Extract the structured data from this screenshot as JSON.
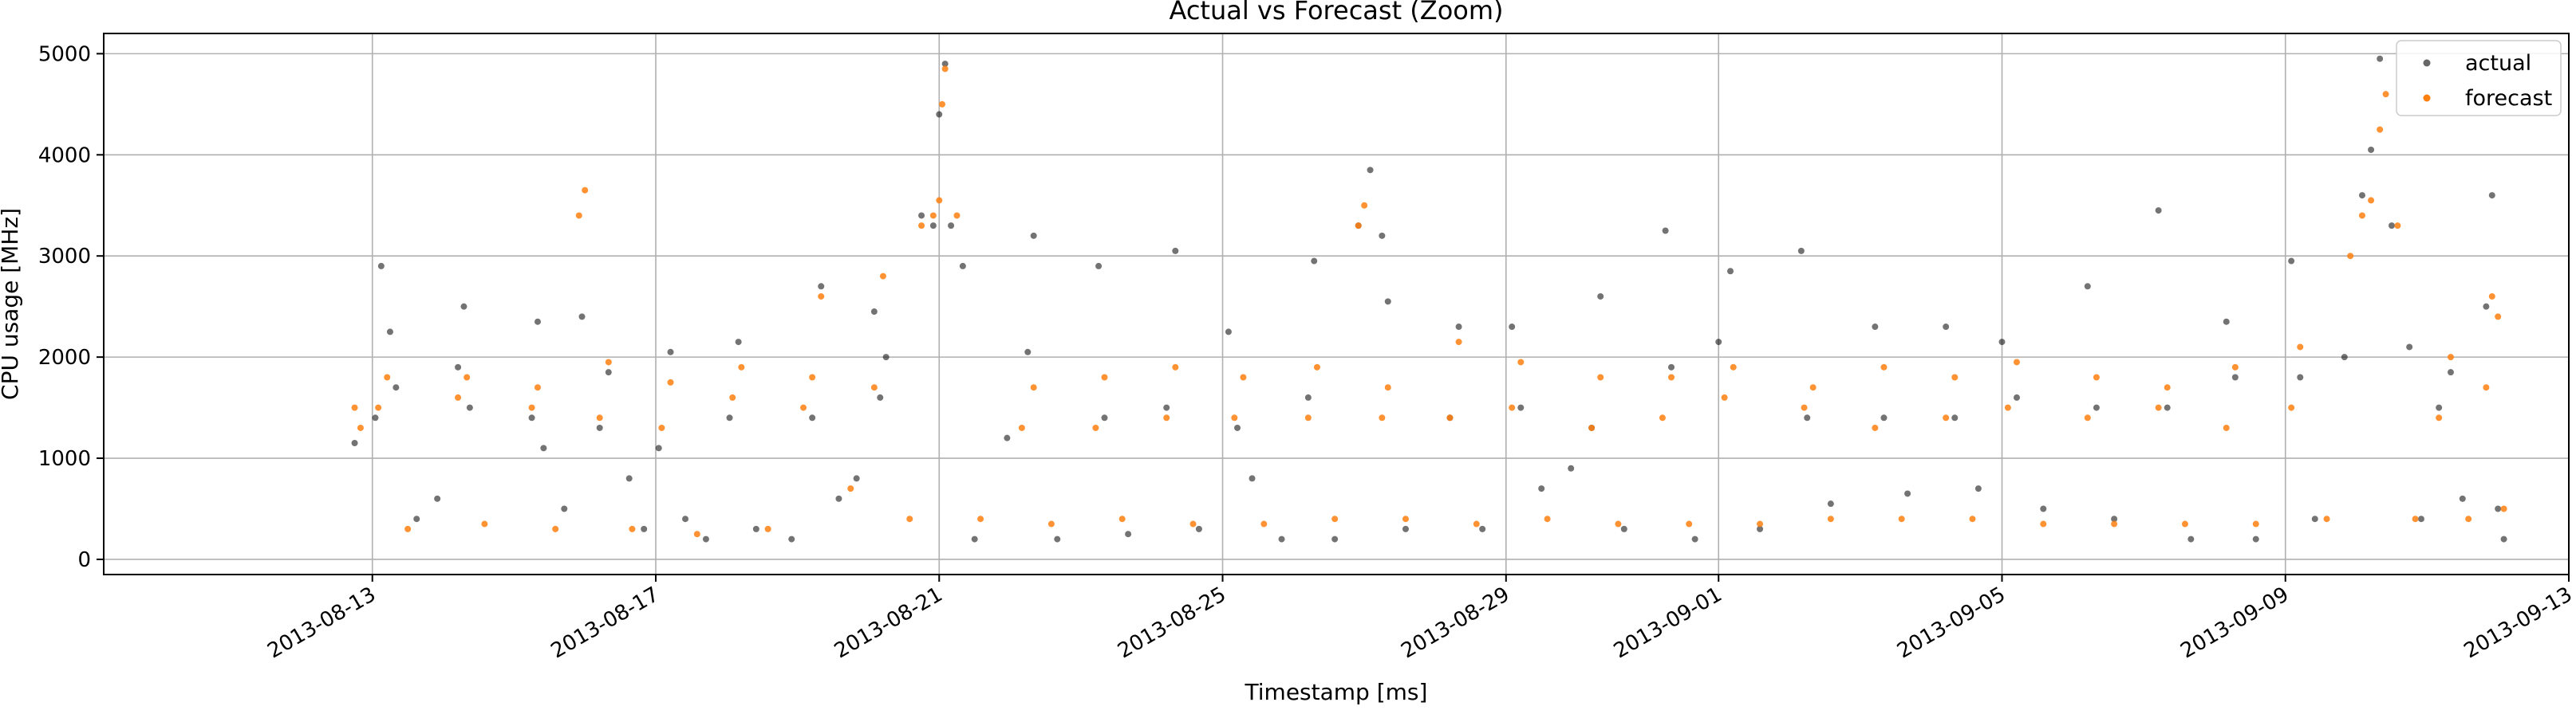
{
  "chart_data": {
    "type": "scatter",
    "title": "Actual vs Forecast (Zoom)",
    "xlabel": "Timestamp [ms]",
    "ylabel": "CPU usage [MHz]",
    "x_range": [
      "2013-08-09T05:00",
      "2013-09-13T00:00"
    ],
    "ylim": [
      -150,
      5200
    ],
    "y_ticks": [
      0,
      1000,
      2000,
      3000,
      4000,
      5000
    ],
    "x_ticks": [
      "2013-08-13",
      "2013-08-17",
      "2013-08-21",
      "2013-08-25",
      "2013-08-29",
      "2013-09-01",
      "2013-09-05",
      "2013-09-09",
      "2013-09-13"
    ],
    "grid": true,
    "legend_position": "top-right",
    "colors": {
      "actual": "#000000",
      "forecast": "#ff7f0e",
      "axes": "#000000",
      "grid": "#b0b0b0"
    },
    "series": [
      {
        "name": "actual",
        "color": "#000000",
        "points": [
          [
            "2013-08-12T18:00",
            1150
          ],
          [
            "2013-08-13T01:00",
            1400
          ],
          [
            "2013-08-13T03:00",
            2900
          ],
          [
            "2013-08-13T06:00",
            2250
          ],
          [
            "2013-08-13T08:00",
            1700
          ],
          [
            "2013-08-13T15:00",
            400
          ],
          [
            "2013-08-13T22:00",
            600
          ],
          [
            "2013-08-14T05:00",
            1900
          ],
          [
            "2013-08-14T07:00",
            2500
          ],
          [
            "2013-08-14T09:00",
            1500
          ],
          [
            "2013-08-15T06:00",
            1400
          ],
          [
            "2013-08-15T08:00",
            2350
          ],
          [
            "2013-08-15T10:00",
            1100
          ],
          [
            "2013-08-15T17:00",
            500
          ],
          [
            "2013-08-15T23:00",
            2400
          ],
          [
            "2013-08-16T05:00",
            1300
          ],
          [
            "2013-08-16T08:00",
            1850
          ],
          [
            "2013-08-16T15:00",
            800
          ],
          [
            "2013-08-16T20:00",
            300
          ],
          [
            "2013-08-17T01:00",
            1100
          ],
          [
            "2013-08-17T05:00",
            2050
          ],
          [
            "2013-08-17T10:00",
            400
          ],
          [
            "2013-08-17T17:00",
            200
          ],
          [
            "2013-08-18T01:00",
            1400
          ],
          [
            "2013-08-18T04:00",
            2150
          ],
          [
            "2013-08-18T10:00",
            300
          ],
          [
            "2013-08-18T22:00",
            200
          ],
          [
            "2013-08-19T05:00",
            1400
          ],
          [
            "2013-08-19T08:00",
            2700
          ],
          [
            "2013-08-19T14:00",
            600
          ],
          [
            "2013-08-19T20:00",
            800
          ],
          [
            "2013-08-20T02:00",
            2450
          ],
          [
            "2013-08-20T04:00",
            1600
          ],
          [
            "2013-08-20T06:00",
            2000
          ],
          [
            "2013-08-20T18:00",
            3400
          ],
          [
            "2013-08-20T22:00",
            3300
          ],
          [
            "2013-08-21T00:00",
            4400
          ],
          [
            "2013-08-21T02:00",
            4900
          ],
          [
            "2013-08-21T04:00",
            3300
          ],
          [
            "2013-08-21T08:00",
            2900
          ],
          [
            "2013-08-21T12:00",
            200
          ],
          [
            "2013-08-21T23:00",
            1200
          ],
          [
            "2013-08-22T06:00",
            2050
          ],
          [
            "2013-08-22T08:00",
            3200
          ],
          [
            "2013-08-22T16:00",
            200
          ],
          [
            "2013-08-23T06:00",
            2900
          ],
          [
            "2013-08-23T08:00",
            1400
          ],
          [
            "2013-08-23T16:00",
            250
          ],
          [
            "2013-08-24T05:00",
            1500
          ],
          [
            "2013-08-24T08:00",
            3050
          ],
          [
            "2013-08-24T16:00",
            300
          ],
          [
            "2013-08-25T02:00",
            2250
          ],
          [
            "2013-08-25T05:00",
            1300
          ],
          [
            "2013-08-25T10:00",
            800
          ],
          [
            "2013-08-25T20:00",
            200
          ],
          [
            "2013-08-26T05:00",
            1600
          ],
          [
            "2013-08-26T07:00",
            2950
          ],
          [
            "2013-08-26T14:00",
            200
          ],
          [
            "2013-08-26T22:00",
            3300
          ],
          [
            "2013-08-27T02:00",
            3850
          ],
          [
            "2013-08-27T06:00",
            3200
          ],
          [
            "2013-08-27T08:00",
            2550
          ],
          [
            "2013-08-27T14:00",
            300
          ],
          [
            "2013-08-28T05:00",
            1400
          ],
          [
            "2013-08-28T08:00",
            2300
          ],
          [
            "2013-08-28T16:00",
            300
          ],
          [
            "2013-08-29T02:00",
            2300
          ],
          [
            "2013-08-29T05:00",
            1500
          ],
          [
            "2013-08-29T12:00",
            700
          ],
          [
            "2013-08-29T22:00",
            900
          ],
          [
            "2013-08-30T05:00",
            1300
          ],
          [
            "2013-08-30T08:00",
            2600
          ],
          [
            "2013-08-30T16:00",
            300
          ],
          [
            "2013-08-31T06:00",
            3250
          ],
          [
            "2013-08-31T08:00",
            1900
          ],
          [
            "2013-08-31T16:00",
            200
          ],
          [
            "2013-09-01T00:00",
            2150
          ],
          [
            "2013-09-01T04:00",
            2850
          ],
          [
            "2013-09-01T14:00",
            300
          ],
          [
            "2013-09-02T04:00",
            3050
          ],
          [
            "2013-09-02T06:00",
            1400
          ],
          [
            "2013-09-02T14:00",
            550
          ],
          [
            "2013-09-03T05:00",
            2300
          ],
          [
            "2013-09-03T08:00",
            1400
          ],
          [
            "2013-09-03T16:00",
            650
          ],
          [
            "2013-09-04T05:00",
            2300
          ],
          [
            "2013-09-04T08:00",
            1400
          ],
          [
            "2013-09-04T16:00",
            700
          ],
          [
            "2013-09-05T00:00",
            2150
          ],
          [
            "2013-09-05T05:00",
            1600
          ],
          [
            "2013-09-05T14:00",
            500
          ],
          [
            "2013-09-06T05:00",
            2700
          ],
          [
            "2013-09-06T08:00",
            1500
          ],
          [
            "2013-09-06T14:00",
            400
          ],
          [
            "2013-09-07T05:00",
            3450
          ],
          [
            "2013-09-07T08:00",
            1500
          ],
          [
            "2013-09-07T16:00",
            200
          ],
          [
            "2013-09-08T04:00",
            2350
          ],
          [
            "2013-09-08T07:00",
            1800
          ],
          [
            "2013-09-08T14:00",
            200
          ],
          [
            "2013-09-09T02:00",
            2950
          ],
          [
            "2013-09-09T05:00",
            1800
          ],
          [
            "2013-09-09T10:00",
            400
          ],
          [
            "2013-09-09T20:00",
            2000
          ],
          [
            "2013-09-10T02:00",
            3600
          ],
          [
            "2013-09-10T05:00",
            4050
          ],
          [
            "2013-09-10T08:00",
            4950
          ],
          [
            "2013-09-10T12:00",
            3300
          ],
          [
            "2013-09-10T18:00",
            2100
          ],
          [
            "2013-09-10T22:00",
            400
          ],
          [
            "2013-09-11T04:00",
            1500
          ],
          [
            "2013-09-11T08:00",
            1850
          ],
          [
            "2013-09-11T12:00",
            600
          ],
          [
            "2013-09-11T20:00",
            2500
          ],
          [
            "2013-09-11T22:00",
            3600
          ],
          [
            "2013-09-12T00:00",
            500
          ],
          [
            "2013-09-12T02:00",
            200
          ]
        ]
      },
      {
        "name": "forecast",
        "color": "#ff7f0e",
        "points": [
          [
            "2013-08-12T18:00",
            1500
          ],
          [
            "2013-08-12T20:00",
            1300
          ],
          [
            "2013-08-13T02:00",
            1500
          ],
          [
            "2013-08-13T05:00",
            1800
          ],
          [
            "2013-08-13T12:00",
            300
          ],
          [
            "2013-08-14T05:00",
            1600
          ],
          [
            "2013-08-14T08:00",
            1800
          ],
          [
            "2013-08-14T14:00",
            350
          ],
          [
            "2013-08-15T06:00",
            1500
          ],
          [
            "2013-08-15T08:00",
            1700
          ],
          [
            "2013-08-15T14:00",
            300
          ],
          [
            "2013-08-15T22:00",
            3400
          ],
          [
            "2013-08-16T00:00",
            3650
          ],
          [
            "2013-08-16T05:00",
            1400
          ],
          [
            "2013-08-16T08:00",
            1950
          ],
          [
            "2013-08-16T16:00",
            300
          ],
          [
            "2013-08-17T02:00",
            1300
          ],
          [
            "2013-08-17T05:00",
            1750
          ],
          [
            "2013-08-17T14:00",
            250
          ],
          [
            "2013-08-18T02:00",
            1600
          ],
          [
            "2013-08-18T05:00",
            1900
          ],
          [
            "2013-08-18T14:00",
            300
          ],
          [
            "2013-08-19T02:00",
            1500
          ],
          [
            "2013-08-19T05:00",
            1800
          ],
          [
            "2013-08-19T08:00",
            2600
          ],
          [
            "2013-08-19T18:00",
            700
          ],
          [
            "2013-08-20T02:00",
            1700
          ],
          [
            "2013-08-20T05:00",
            2800
          ],
          [
            "2013-08-20T14:00",
            400
          ],
          [
            "2013-08-20T18:00",
            3300
          ],
          [
            "2013-08-20T22:00",
            3400
          ],
          [
            "2013-08-21T00:00",
            3550
          ],
          [
            "2013-08-21T01:00",
            4500
          ],
          [
            "2013-08-21T02:00",
            4850
          ],
          [
            "2013-08-21T06:00",
            3400
          ],
          [
            "2013-08-21T14:00",
            400
          ],
          [
            "2013-08-22T04:00",
            1300
          ],
          [
            "2013-08-22T08:00",
            1700
          ],
          [
            "2013-08-22T14:00",
            350
          ],
          [
            "2013-08-23T05:00",
            1300
          ],
          [
            "2013-08-23T08:00",
            1800
          ],
          [
            "2013-08-23T14:00",
            400
          ],
          [
            "2013-08-24T05:00",
            1400
          ],
          [
            "2013-08-24T08:00",
            1900
          ],
          [
            "2013-08-24T14:00",
            350
          ],
          [
            "2013-08-25T04:00",
            1400
          ],
          [
            "2013-08-25T07:00",
            1800
          ],
          [
            "2013-08-25T14:00",
            350
          ],
          [
            "2013-08-26T05:00",
            1400
          ],
          [
            "2013-08-26T08:00",
            1900
          ],
          [
            "2013-08-26T14:00",
            400
          ],
          [
            "2013-08-26T22:00",
            3300
          ],
          [
            "2013-08-27T00:00",
            3500
          ],
          [
            "2013-08-27T06:00",
            1400
          ],
          [
            "2013-08-27T08:00",
            1700
          ],
          [
            "2013-08-27T14:00",
            400
          ],
          [
            "2013-08-28T05:00",
            1400
          ],
          [
            "2013-08-28T08:00",
            2150
          ],
          [
            "2013-08-28T14:00",
            350
          ],
          [
            "2013-08-29T02:00",
            1500
          ],
          [
            "2013-08-29T05:00",
            1950
          ],
          [
            "2013-08-29T14:00",
            400
          ],
          [
            "2013-08-30T05:00",
            1300
          ],
          [
            "2013-08-30T08:00",
            1800
          ],
          [
            "2013-08-30T14:00",
            350
          ],
          [
            "2013-08-31T05:00",
            1400
          ],
          [
            "2013-08-31T08:00",
            1800
          ],
          [
            "2013-08-31T14:00",
            350
          ],
          [
            "2013-09-01T02:00",
            1600
          ],
          [
            "2013-09-01T05:00",
            1900
          ],
          [
            "2013-09-01T14:00",
            350
          ],
          [
            "2013-09-02T05:00",
            1500
          ],
          [
            "2013-09-02T08:00",
            1700
          ],
          [
            "2013-09-02T14:00",
            400
          ],
          [
            "2013-09-03T05:00",
            1300
          ],
          [
            "2013-09-03T08:00",
            1900
          ],
          [
            "2013-09-03T14:00",
            400
          ],
          [
            "2013-09-04T05:00",
            1400
          ],
          [
            "2013-09-04T08:00",
            1800
          ],
          [
            "2013-09-04T14:00",
            400
          ],
          [
            "2013-09-05T02:00",
            1500
          ],
          [
            "2013-09-05T05:00",
            1950
          ],
          [
            "2013-09-05T14:00",
            350
          ],
          [
            "2013-09-06T05:00",
            1400
          ],
          [
            "2013-09-06T08:00",
            1800
          ],
          [
            "2013-09-06T14:00",
            350
          ],
          [
            "2013-09-07T05:00",
            1500
          ],
          [
            "2013-09-07T08:00",
            1700
          ],
          [
            "2013-09-07T14:00",
            350
          ],
          [
            "2013-09-08T04:00",
            1300
          ],
          [
            "2013-09-08T07:00",
            1900
          ],
          [
            "2013-09-08T14:00",
            350
          ],
          [
            "2013-09-09T02:00",
            1500
          ],
          [
            "2013-09-09T05:00",
            2100
          ],
          [
            "2013-09-09T14:00",
            400
          ],
          [
            "2013-09-09T22:00",
            3000
          ],
          [
            "2013-09-10T02:00",
            3400
          ],
          [
            "2013-09-10T05:00",
            3550
          ],
          [
            "2013-09-10T08:00",
            4250
          ],
          [
            "2013-09-10T10:00",
            4600
          ],
          [
            "2013-09-10T14:00",
            3300
          ],
          [
            "2013-09-10T20:00",
            400
          ],
          [
            "2013-09-11T04:00",
            1400
          ],
          [
            "2013-09-11T08:00",
            2000
          ],
          [
            "2013-09-11T14:00",
            400
          ],
          [
            "2013-09-11T20:00",
            1700
          ],
          [
            "2013-09-11T22:00",
            2600
          ],
          [
            "2013-09-12T00:00",
            2400
          ],
          [
            "2013-09-12T02:00",
            500
          ]
        ]
      }
    ]
  }
}
